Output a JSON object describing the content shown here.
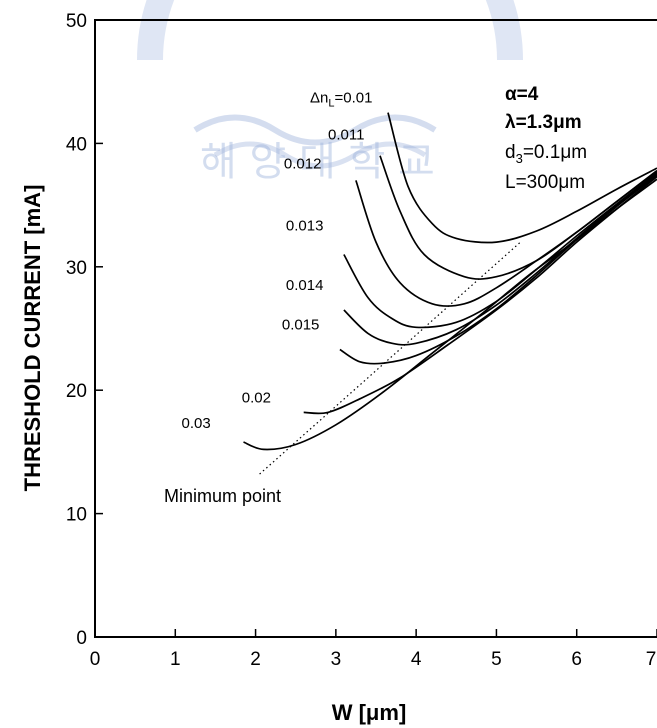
{
  "chart_data": {
    "type": "line",
    "xlabel": "W [μm]",
    "ylabel": "THRESHOLD CURRENT [mA]",
    "xlim": [
      0,
      7
    ],
    "ylim": [
      0,
      50
    ],
    "x_ticks": [
      "0",
      "1",
      "2",
      "3",
      "4",
      "5",
      "6",
      "7"
    ],
    "y_ticks": [
      "0",
      "10",
      "20",
      "30",
      "40",
      "50"
    ],
    "grid": false,
    "parameters": [
      "α=4",
      "λ=1.3μm",
      "d3=0.1μm",
      "L=300μm"
    ],
    "annotation": "Minimum point",
    "series_label_prefix": "Δn",
    "series_label_subscript": "L",
    "series_label_eq": "=",
    "series": [
      {
        "name": "0.01",
        "label": "0.01",
        "x": [
          3.65,
          3.9,
          4.2,
          4.5,
          5.0,
          5.5,
          6.0,
          6.5,
          7.0
        ],
        "y": [
          42.5,
          36.5,
          33.5,
          32.3,
          32.0,
          32.9,
          34.5,
          36.3,
          38.0
        ]
      },
      {
        "name": "0.011",
        "label": "0.011",
        "x": [
          3.55,
          3.8,
          4.1,
          4.6,
          5.0,
          5.5,
          6.0,
          6.5,
          7.0
        ],
        "y": [
          39.0,
          34.5,
          31.0,
          29.2,
          29.2,
          30.5,
          32.8,
          35.3,
          37.8
        ]
      },
      {
        "name": "0.012",
        "label": "0.012",
        "x": [
          3.25,
          3.5,
          3.8,
          4.2,
          4.6,
          5.0,
          5.5,
          6.0,
          6.5,
          7.0
        ],
        "y": [
          37.0,
          32.0,
          28.7,
          27.0,
          27.0,
          28.3,
          30.5,
          32.8,
          35.3,
          37.7
        ]
      },
      {
        "name": "0.013",
        "label": "0.013",
        "x": [
          3.1,
          3.4,
          3.7,
          4.0,
          4.5,
          5.0,
          5.5,
          6.0,
          6.5,
          7.0
        ],
        "y": [
          31.0,
          27.5,
          25.8,
          25.1,
          25.5,
          27.2,
          29.8,
          32.5,
          35.1,
          37.6
        ]
      },
      {
        "name": "0.014",
        "label": "0.014",
        "x": [
          3.1,
          3.4,
          3.7,
          4.0,
          4.5,
          5.0,
          5.5,
          6.0,
          6.5,
          7.0
        ],
        "y": [
          26.5,
          24.6,
          23.8,
          23.8,
          24.9,
          26.9,
          29.5,
          32.3,
          35.0,
          37.5
        ]
      },
      {
        "name": "0.015",
        "label": "0.015",
        "x": [
          3.05,
          3.3,
          3.6,
          4.0,
          4.5,
          5.0,
          5.5,
          6.0,
          6.5,
          7.0
        ],
        "y": [
          23.3,
          22.3,
          22.2,
          22.8,
          24.4,
          26.6,
          29.3,
          32.2,
          34.9,
          37.4
        ]
      },
      {
        "name": "0.02",
        "label": "0.02",
        "x": [
          2.6,
          2.9,
          3.3,
          3.8,
          4.4,
          5.0,
          5.5,
          6.0,
          6.5,
          7.0
        ],
        "y": [
          18.2,
          18.2,
          19.3,
          21.0,
          23.7,
          26.5,
          29.1,
          32.0,
          34.7,
          37.3
        ]
      },
      {
        "name": "0.03",
        "label": "0.03",
        "x": [
          1.85,
          2.1,
          2.5,
          3.0,
          3.6,
          4.2,
          4.8,
          5.4,
          6.0,
          6.5,
          7.0
        ],
        "y": [
          15.8,
          15.2,
          15.6,
          17.2,
          19.9,
          23.0,
          26.1,
          29.3,
          32.2,
          34.7,
          37.1
        ]
      }
    ],
    "min_point_line": {
      "x": [
        2.05,
        5.3
      ],
      "y": [
        13.2,
        32.0
      ]
    }
  },
  "watermark": {
    "text": "해 양 대 학 교",
    "color": "#9fb4dc"
  }
}
